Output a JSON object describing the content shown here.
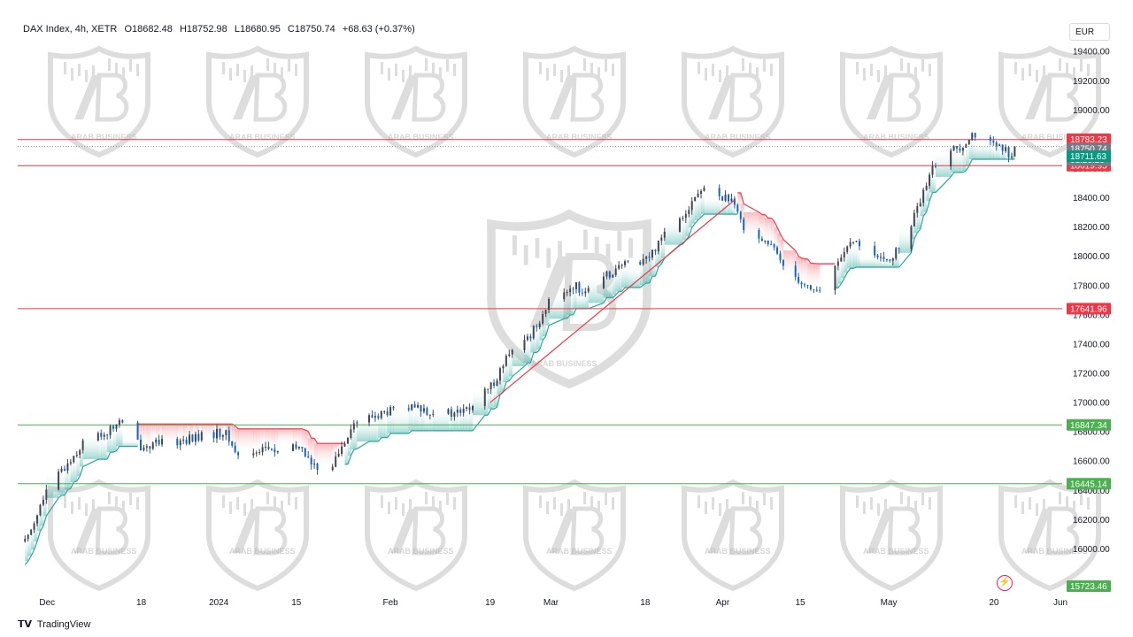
{
  "header": {
    "symbol": "DAX Index, 4h, XETR",
    "open": "O18682.48",
    "high": "H18752.98",
    "low": "L18680.95",
    "close": "C18750.74",
    "change": "+68.63 (+0.37%)"
  },
  "currency": "EUR",
  "footer": {
    "brand": "TradingView"
  },
  "watermark": {
    "text": "ARAB BUSINESS"
  },
  "colors": {
    "up": "#26a69a",
    "down": "#1565c0",
    "candle": "#434651",
    "resistance": "#f23645",
    "support": "#4caf50",
    "cloud_up": "#26a69a",
    "cloud_down": "#f23645"
  },
  "chart_data": {
    "type": "candlestick",
    "timeframe": "4h",
    "ylim": [
      15723.46,
      19500
    ],
    "y_ticks": [
      16000,
      16200,
      16400,
      16600,
      16800,
      17000,
      17200,
      17400,
      17600,
      17800,
      18000,
      18200,
      18400,
      18600,
      18800,
      19000,
      19200,
      19400
    ],
    "y_tick_labels": [
      "16000.00",
      "16200.00",
      "16400.00",
      "16600.00",
      "16800.00",
      "17000.00",
      "17200.00",
      "17400.00",
      "17600.00",
      "17800.00",
      "18000.00",
      "18200.00",
      "18400.00",
      "18600.00",
      "18800.00",
      "19000.00",
      "19200.00",
      "19400.00"
    ],
    "x_labels": [
      "Dec",
      "18",
      "2024",
      "15",
      "Feb",
      "19",
      "Mar",
      "18",
      "Apr",
      "15",
      "May",
      "20",
      "Jun"
    ],
    "horizontal_levels": [
      {
        "value": 18798.2,
        "label": "18798.20",
        "kind": "resistance"
      },
      {
        "value": 18619.95,
        "label": "18619.95",
        "kind": "resistance"
      },
      {
        "value": 17641.96,
        "label": "17641.96",
        "kind": "resistance"
      },
      {
        "value": 16847.34,
        "label": "16847.34",
        "kind": "support"
      },
      {
        "value": 16445.14,
        "label": "16445.14",
        "kind": "support"
      }
    ],
    "price_labels": [
      {
        "value": 18783.23,
        "label": "18783.23",
        "color": "#f23645"
      },
      {
        "value": 18750.74,
        "label": "18750.74",
        "sub": "01:28:29",
        "color": "#787b86"
      },
      {
        "value": 18711.63,
        "label": "18711.63",
        "color": "#089981"
      },
      {
        "value": 15723.46,
        "label": "15723.46",
        "color": "#4caf50"
      }
    ],
    "trendline": {
      "from": [
        17000,
        "Feb 19"
      ],
      "to": [
        18380,
        "Apr 3"
      ]
    },
    "close_path": [
      [
        "Nov 27",
        16050
      ],
      [
        "Dec 1",
        16400
      ],
      [
        "Dec 5",
        16600
      ],
      [
        "Dec 8",
        16750
      ],
      [
        "Dec 12",
        16800
      ],
      [
        "Dec 14",
        16870
      ],
      [
        "Dec 18",
        16700
      ],
      [
        "Dec 22",
        16720
      ],
      [
        "Dec 28",
        16760
      ],
      [
        "Jan 2",
        16800
      ],
      [
        "Jan 5",
        16600
      ],
      [
        "Jan 9",
        16700
      ],
      [
        "Jan 12",
        16650
      ],
      [
        "Jan 16",
        16700
      ],
      [
        "Jan 18",
        16550
      ],
      [
        "Jan 22",
        16600
      ],
      [
        "Jan 25",
        16850
      ],
      [
        "Jan 30",
        16920
      ],
      [
        "Feb 2",
        16950
      ],
      [
        "Feb 6",
        16960
      ],
      [
        "Feb 9",
        16940
      ],
      [
        "Feb 12",
        16920
      ],
      [
        "Feb 15",
        16950
      ],
      [
        "Feb 19",
        17100
      ],
      [
        "Feb 22",
        17300
      ],
      [
        "Feb 26",
        17450
      ],
      [
        "Mar 1",
        17700
      ],
      [
        "Mar 5",
        17800
      ],
      [
        "Mar 8",
        17750
      ],
      [
        "Mar 12",
        17900
      ],
      [
        "Mar 15",
        17950
      ],
      [
        "Mar 19",
        18000
      ],
      [
        "Mar 21",
        18150
      ],
      [
        "Mar 25",
        18300
      ],
      [
        "Mar 28",
        18450
      ],
      [
        "Apr 2",
        18400
      ],
      [
        "Apr 5",
        18200
      ],
      [
        "Apr 9",
        18100
      ],
      [
        "Apr 12",
        17950
      ],
      [
        "Apr 16",
        17800
      ],
      [
        "Apr 19",
        17750
      ],
      [
        "Apr 23",
        18050
      ],
      [
        "Apr 26",
        18100
      ],
      [
        "Apr 30",
        17950
      ],
      [
        "May 3",
        18050
      ],
      [
        "May 7",
        18400
      ],
      [
        "May 10",
        18700
      ],
      [
        "May 14",
        18750
      ],
      [
        "May 16",
        18850
      ],
      [
        "May 20",
        18750
      ],
      [
        "May 23",
        18700
      ],
      [
        "May 24",
        18750.74
      ]
    ]
  }
}
